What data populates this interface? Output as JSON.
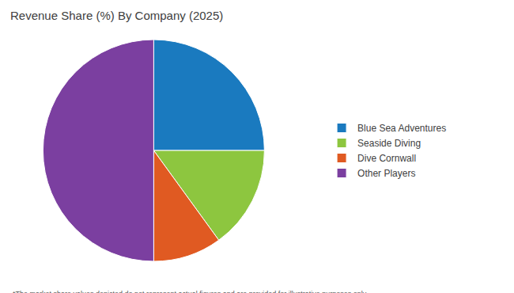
{
  "chart_data": {
    "type": "pie",
    "title": "Revenue Share (%) By Company (2025)",
    "categories": [
      "Blue Sea Adventures",
      "Seaside Diving",
      "Dive Cornwall",
      "Other Players"
    ],
    "values": [
      25,
      15,
      10,
      50
    ],
    "colors": [
      "#1a7abf",
      "#8dc63f",
      "#e05a22",
      "#7b3fa0"
    ],
    "legend": "right",
    "annotations": [
      "*The market share values depicted do not represent actual figures and are provided for illustrative purposes only."
    ]
  }
}
